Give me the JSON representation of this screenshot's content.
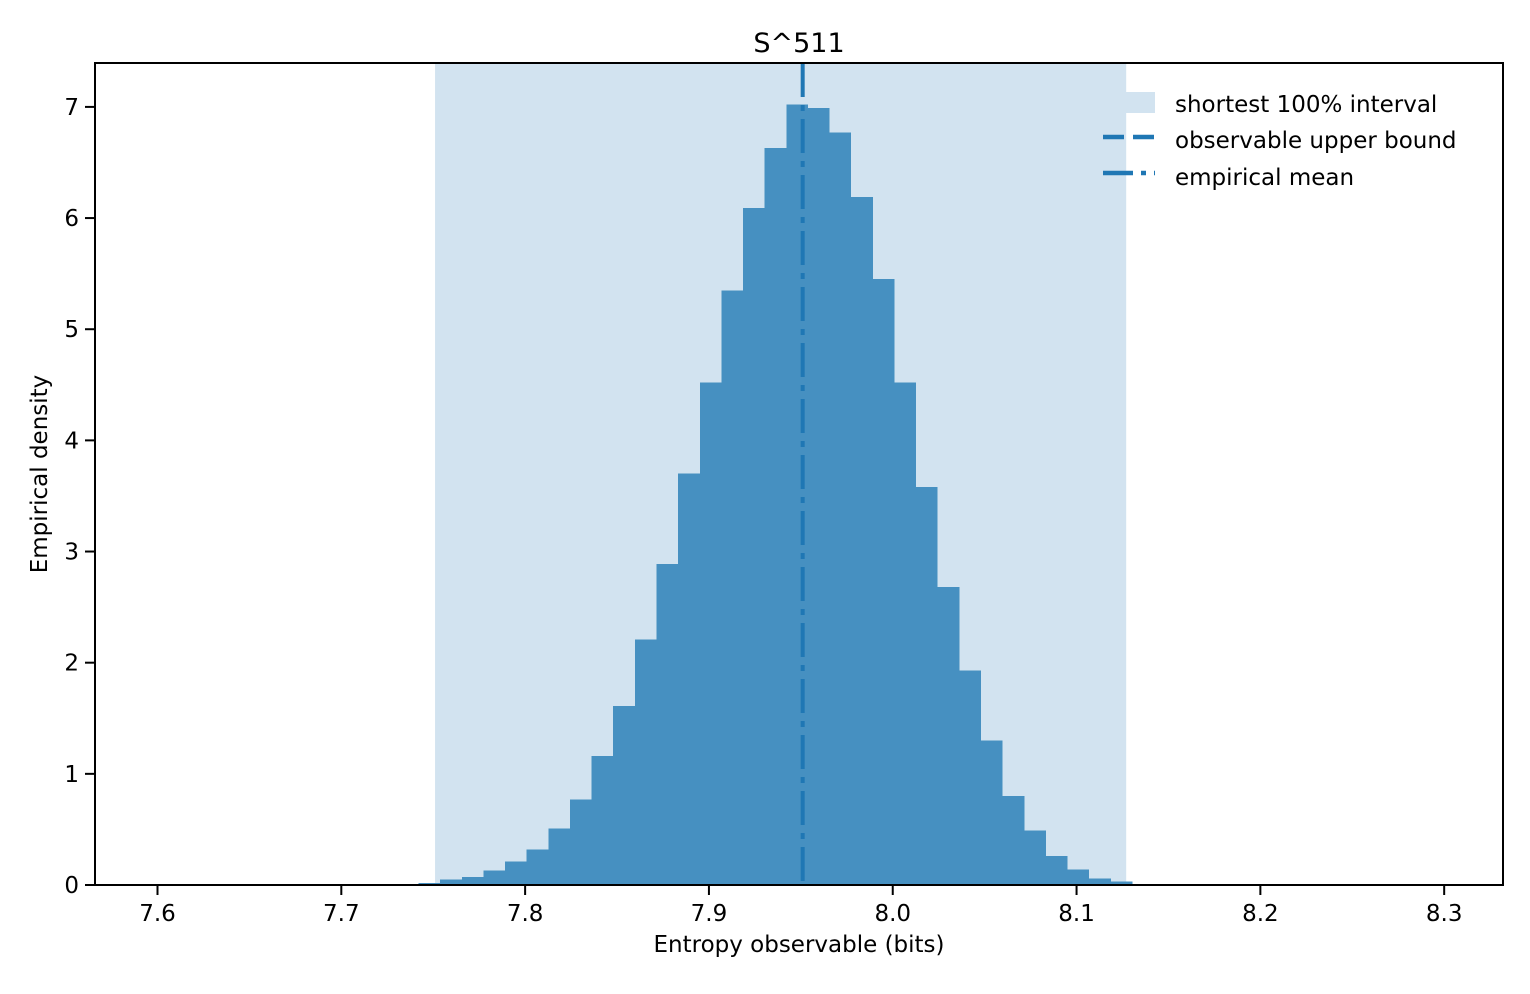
{
  "title": "S^511",
  "axes": {
    "xlabel": "Entropy observable (bits)",
    "ylabel": "Empirical density",
    "x_tick_labels": [
      "7.6",
      "7.7",
      "7.8",
      "7.9",
      "8.0",
      "8.1",
      "8.2",
      "8.3"
    ],
    "y_tick_labels": [
      "0",
      "1",
      "2",
      "3",
      "4",
      "5",
      "6",
      "7"
    ]
  },
  "legend": {
    "items": [
      {
        "label": "shortest 100% interval",
        "sample": "patch",
        "color": "#D2E3F0"
      },
      {
        "label": "observable upper bound",
        "sample": "dashed-line",
        "color": "#1F77B4"
      },
      {
        "label": "empirical mean",
        "sample": "dashdot-line",
        "color": "#1F77B4"
      }
    ]
  },
  "chart_data": {
    "type": "bar",
    "subtype": "histogram",
    "title": "S^511",
    "xlabel": "Entropy observable (bits)",
    "ylabel": "Empirical density",
    "xlim": [
      7.566,
      8.332
    ],
    "ylim": [
      0,
      7.395
    ],
    "x_ticks": [
      7.6,
      7.7,
      7.8,
      7.9,
      8.0,
      8.1,
      8.2,
      8.3
    ],
    "y_ticks": [
      0,
      1,
      2,
      3,
      4,
      5,
      6,
      7
    ],
    "grid": false,
    "legend_position": "upper right",
    "bin_start": 7.742,
    "bin_width": 0.01177,
    "bin_heights": [
      0.02,
      0.05,
      0.07,
      0.13,
      0.21,
      0.32,
      0.51,
      0.77,
      1.16,
      1.61,
      2.21,
      2.89,
      3.7,
      4.52,
      5.35,
      6.09,
      6.63,
      7.02,
      6.99,
      6.77,
      6.19,
      5.45,
      4.52,
      3.58,
      2.68,
      1.93,
      1.3,
      0.8,
      0.49,
      0.26,
      0.14,
      0.06,
      0.03
    ],
    "shaded_interval": {
      "label": "shortest 100% interval",
      "from": 7.751,
      "to": 8.127
    },
    "empirical_mean": 7.951,
    "colors": {
      "bar": "#4690C1",
      "shade": "#D2E3F0",
      "line": "#1F77B4",
      "spine": "#000000"
    }
  }
}
